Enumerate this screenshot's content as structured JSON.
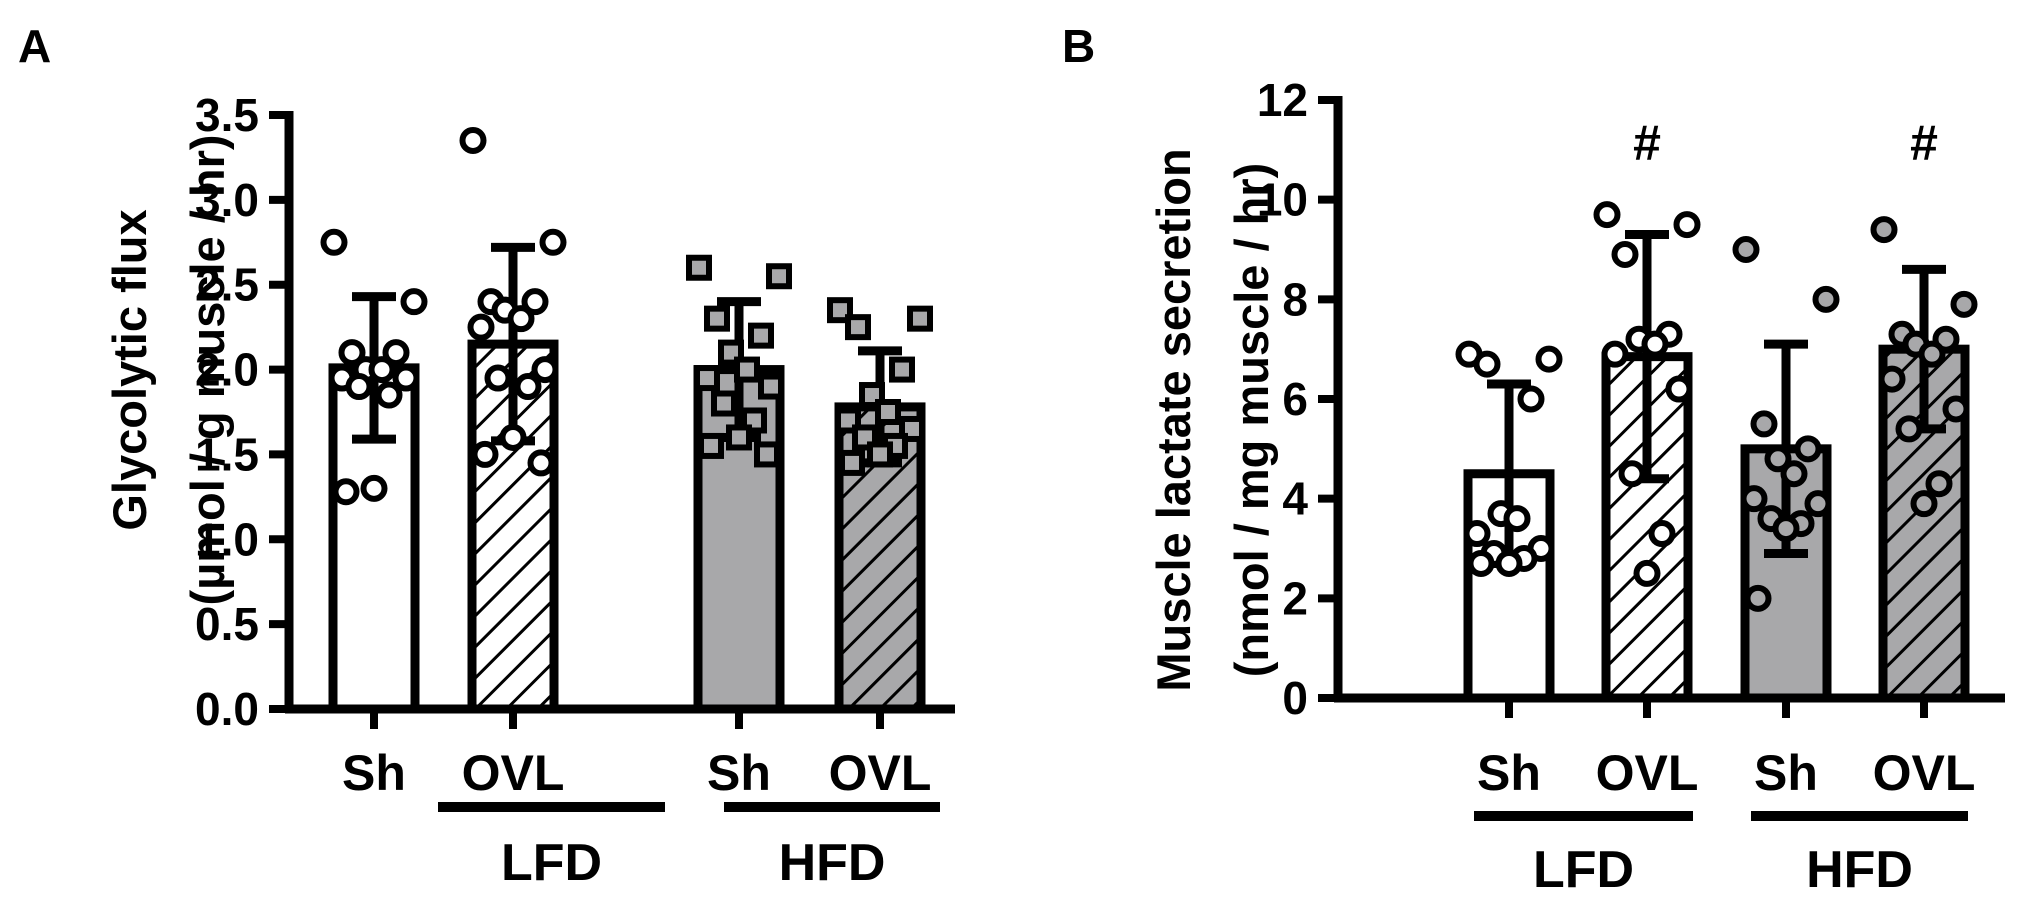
{
  "chart_data": [
    {
      "panel": "A",
      "type": "bar",
      "ylabel_line1": "Glycolytic flux",
      "ylabel_line2": "(µmol / g muscle / hr)",
      "ylim": [
        0,
        3.5
      ],
      "yticks": [
        "0.0",
        "0.5",
        "1.0",
        "1.5",
        "2.0",
        "2.5",
        "3.0",
        "3.5"
      ],
      "categories": [
        "Sh",
        "OVL",
        "Sh",
        "OVL"
      ],
      "groups": [
        {
          "label": "LFD",
          "members": [
            0,
            1
          ]
        },
        {
          "label": "HFD",
          "members": [
            2,
            3
          ]
        }
      ],
      "series": [
        {
          "name": "LFD Sh",
          "mean": 2.01,
          "sd": 0.42,
          "fill": "white",
          "hatch": false,
          "marker": "circle",
          "points": [
            2.75,
            2.4,
            2.1,
            2.1,
            2.0,
            2.0,
            1.95,
            1.95,
            1.9,
            1.85,
            1.3,
            1.28
          ]
        },
        {
          "name": "LFD OVL",
          "mean": 2.15,
          "sd": 0.57,
          "fill": "white",
          "hatch": true,
          "marker": "circle",
          "points": [
            3.35,
            2.75,
            2.4,
            2.4,
            2.35,
            2.3,
            2.25,
            2.0,
            1.95,
            1.9,
            1.6,
            1.5,
            1.45
          ]
        },
        {
          "name": "HFD Sh",
          "mean": 2.0,
          "sd": 0.4,
          "fill": "gray",
          "hatch": false,
          "marker": "square",
          "points": [
            2.6,
            2.55,
            2.3,
            2.2,
            2.1,
            2.0,
            1.95,
            1.9,
            1.8,
            1.7,
            1.6,
            1.55,
            1.5
          ]
        },
        {
          "name": "HFD OVL",
          "mean": 1.78,
          "sd": 0.33,
          "fill": "gray",
          "hatch": true,
          "marker": "square",
          "points": [
            2.35,
            2.3,
            2.25,
            2.0,
            1.85,
            1.75,
            1.7,
            1.65,
            1.6,
            1.55,
            1.5,
            1.45
          ]
        }
      ],
      "annotations": []
    },
    {
      "panel": "B",
      "type": "bar",
      "ylabel_line1": "Muscle lactate secretion",
      "ylabel_line2": "(nmol / mg muscle / hr)",
      "ylim": [
        0,
        12
      ],
      "yticks": [
        "0",
        "2",
        "4",
        "6",
        "8",
        "10",
        "12"
      ],
      "categories": [
        "Sh",
        "OVL",
        "Sh",
        "OVL"
      ],
      "groups": [
        {
          "label": "LFD",
          "members": [
            0,
            1
          ]
        },
        {
          "label": "HFD",
          "members": [
            2,
            3
          ]
        }
      ],
      "series": [
        {
          "name": "LFD Sh",
          "mean": 4.5,
          "sd": 1.8,
          "fill": "white",
          "hatch": false,
          "marker": "circle",
          "points": [
            6.9,
            6.8,
            6.7,
            6.0,
            3.7,
            3.6,
            3.3,
            3.0,
            2.9,
            2.8,
            2.7,
            2.7
          ]
        },
        {
          "name": "LFD OVL",
          "mean": 6.85,
          "sd": 2.45,
          "fill": "white",
          "hatch": true,
          "marker": "circle",
          "points": [
            9.7,
            9.5,
            8.9,
            7.3,
            7.2,
            7.1,
            6.9,
            6.2,
            4.5,
            3.3,
            2.5
          ]
        },
        {
          "name": "HFD Sh",
          "mean": 5.0,
          "sd": 2.1,
          "fill": "gray",
          "hatch": false,
          "marker": "circle",
          "points": [
            9.0,
            8.0,
            5.5,
            5.0,
            4.8,
            4.5,
            4.0,
            3.9,
            3.6,
            3.5,
            3.4,
            2.0
          ]
        },
        {
          "name": "HFD OVL",
          "mean": 7.0,
          "sd": 1.6,
          "fill": "gray",
          "hatch": true,
          "marker": "circle",
          "points": [
            9.4,
            7.9,
            7.3,
            7.2,
            7.1,
            6.9,
            6.4,
            5.8,
            5.4,
            4.3,
            3.9
          ]
        }
      ],
      "annotations": [
        {
          "text": "#",
          "bar": 1
        },
        {
          "text": "#",
          "bar": 3
        }
      ]
    }
  ],
  "colors": {
    "ink": "#000000",
    "bar_gray": "#a8a8aa",
    "marker_gray": "#a8a8aa",
    "white": "#ffffff"
  }
}
